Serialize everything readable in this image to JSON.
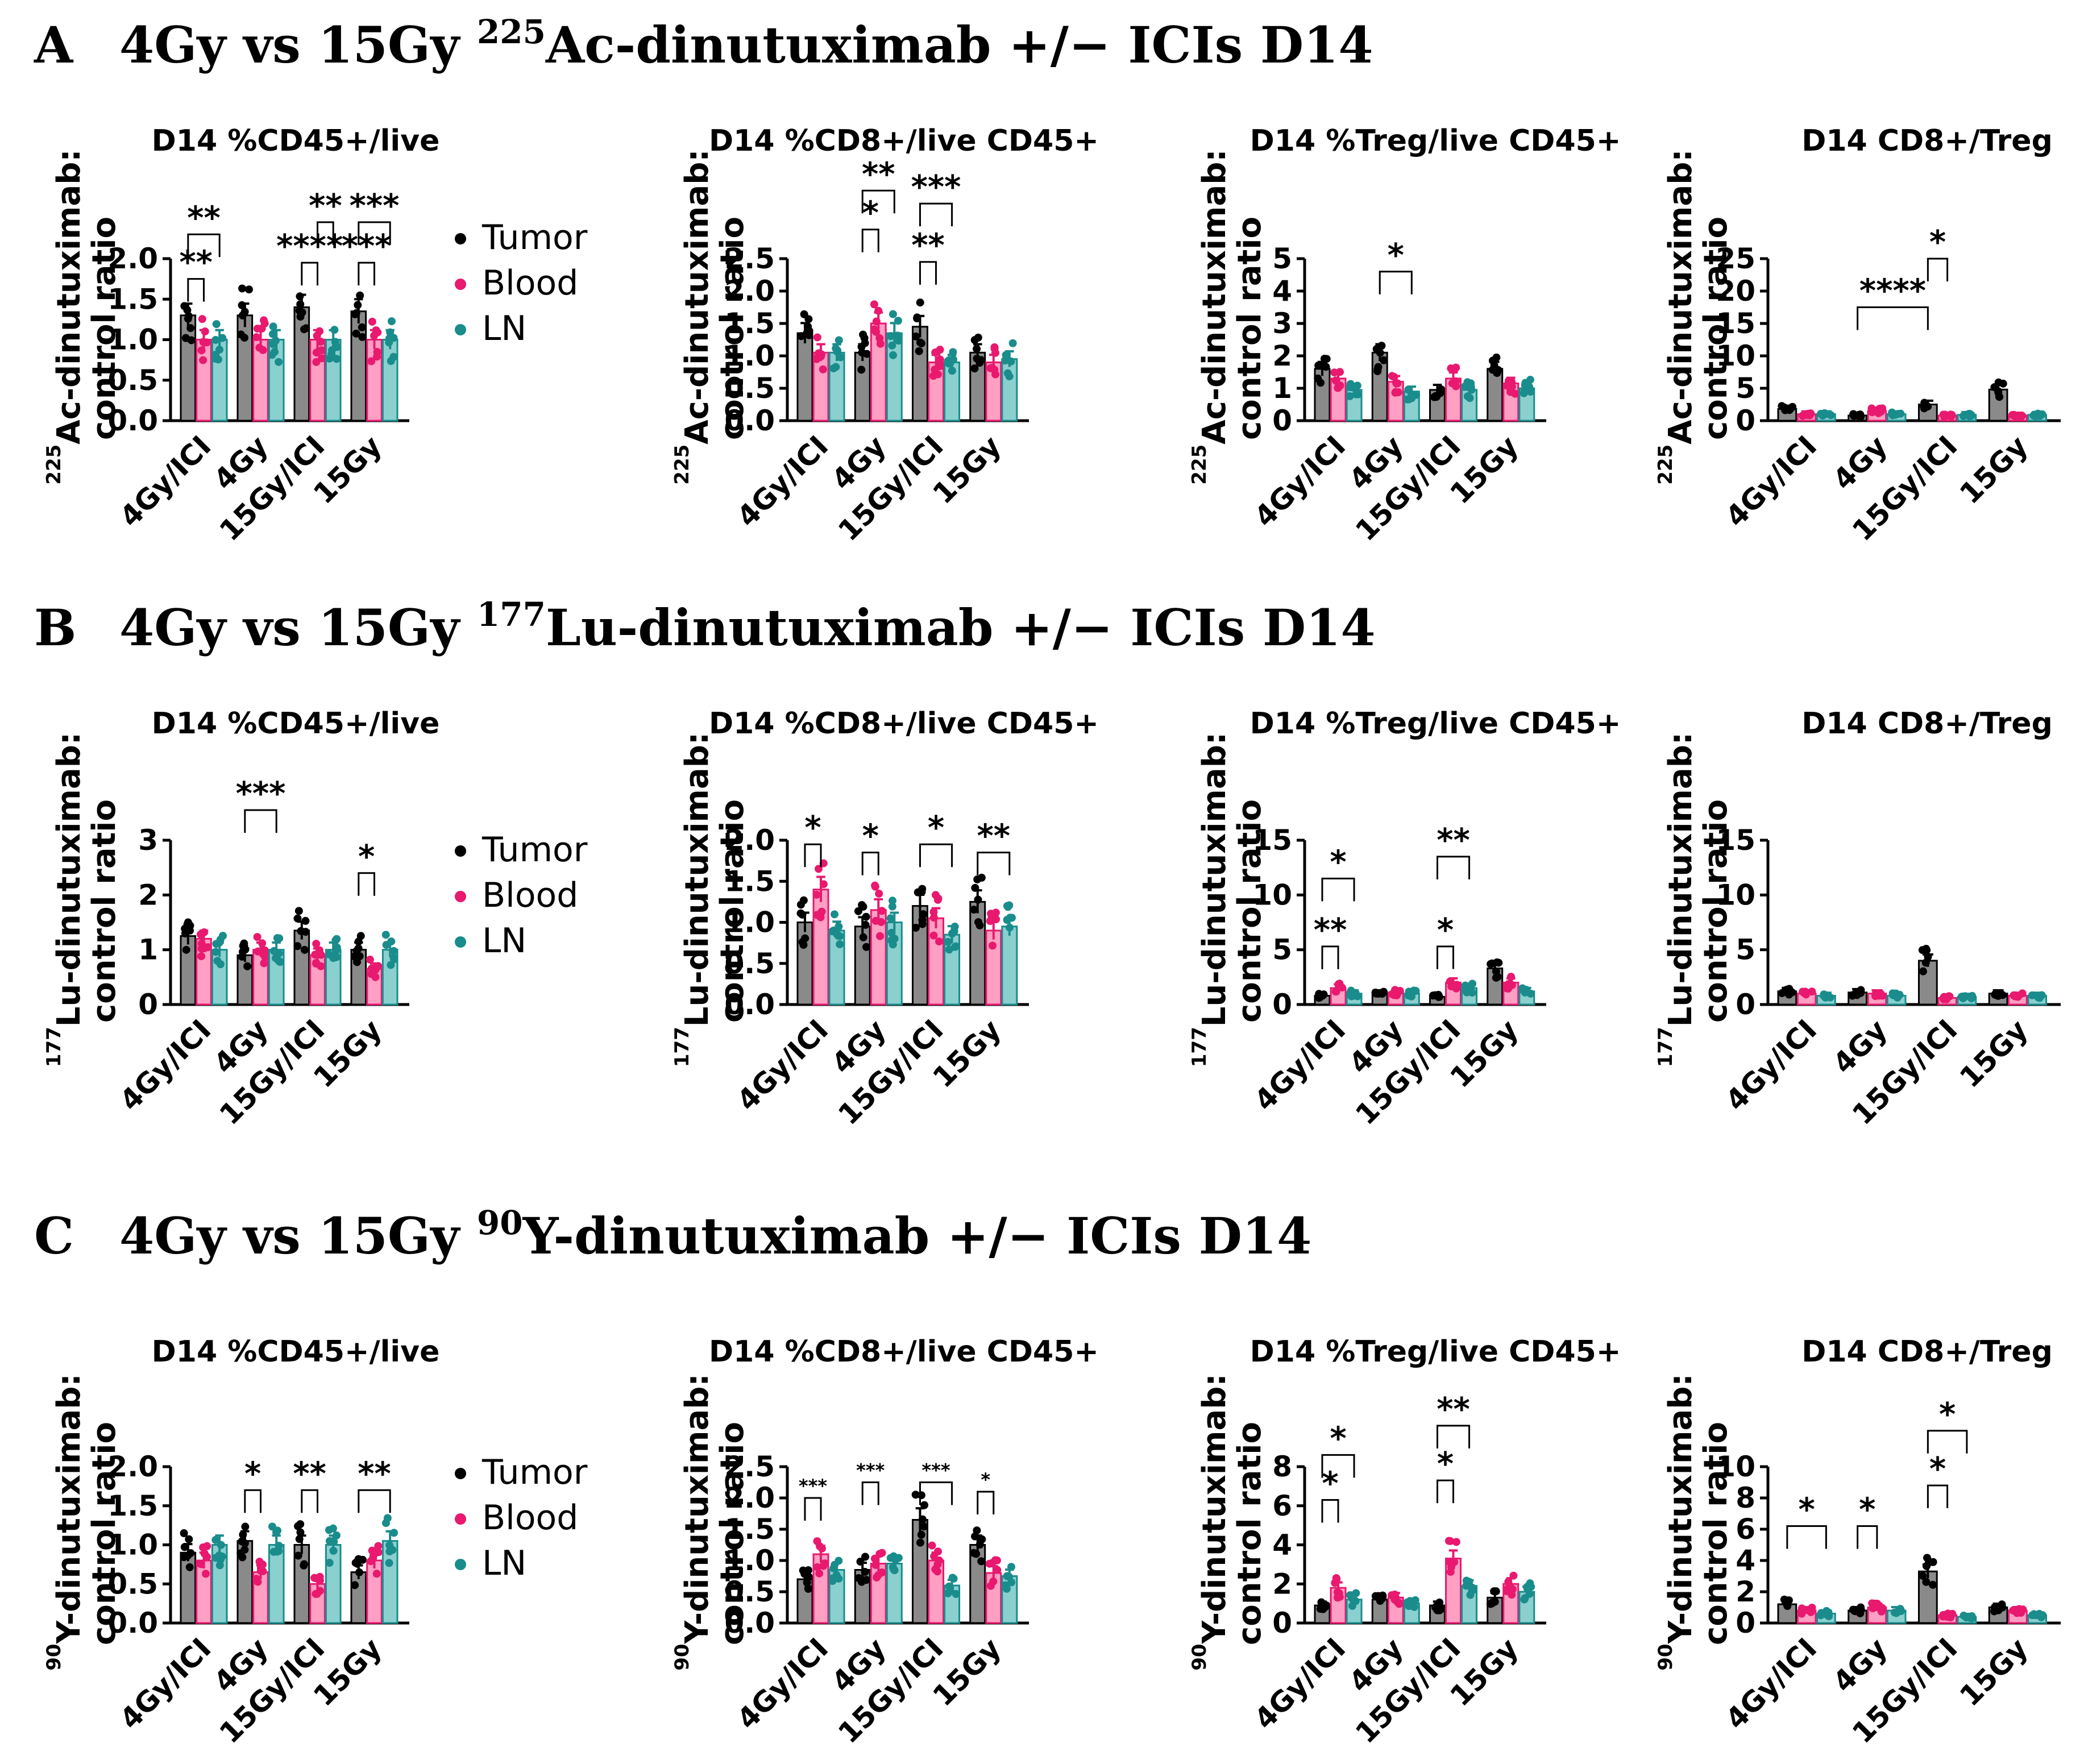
{
  "series_colors": {
    "Tumor": "#000000",
    "Blood": "#e8196e",
    "LN": "#1a8c8c"
  },
  "bar_fill_colors": {
    "Tumor": "#8a8a8a",
    "Blood": "#ff9fc3",
    "LN": "#8ad0cf"
  },
  "legend": {
    "items": [
      "Tumor",
      "Blood",
      "LN"
    ]
  },
  "sections": [
    {
      "letter": "A",
      "title_pre": "4Gy vs 15Gy ",
      "isotope_sup": "225",
      "title_post": "Ac-dinutuximab +/− ICIs D14",
      "ylabel_sup": "225",
      "ylabel_name": "Ac-dinutuximab:",
      "ylabel_line2": "control ratio"
    },
    {
      "letter": "B",
      "title_pre": "4Gy vs 15Gy ",
      "isotope_sup": "177",
      "title_post": "Lu-dinutuximab +/− ICIs D14",
      "ylabel_sup": "177",
      "ylabel_name": "Lu-dinutuximab:",
      "ylabel_line2": "control ratio"
    },
    {
      "letter": "C",
      "title_pre": "4Gy vs 15Gy ",
      "isotope_sup": "90",
      "title_post": "Y-dinutuximab +/− ICIs D14",
      "ylabel_sup": "90",
      "ylabel_name": "Y-dinutuximab:",
      "ylabel_line2": "control ratio"
    }
  ],
  "chart_data": [
    {
      "id": "A1",
      "type": "bar",
      "title": "D14 %CD45+/live",
      "categories": [
        "4Gy/ICI",
        "4Gy",
        "15Gy/ICI",
        "15Gy"
      ],
      "ylim": [
        0,
        2.0
      ],
      "yticks": [
        0.0,
        0.5,
        1.0,
        1.5,
        2.0
      ],
      "ytick_labels": [
        "0.0",
        "0.5",
        "1.0",
        "1.5",
        "2.0"
      ],
      "series": [
        {
          "name": "Tumor",
          "values": [
            1.3,
            1.3,
            1.4,
            1.35
          ]
        },
        {
          "name": "Blood",
          "values": [
            1.0,
            1.0,
            1.0,
            1.0
          ]
        },
        {
          "name": "LN",
          "values": [
            1.0,
            1.0,
            1.0,
            1.0
          ]
        }
      ],
      "annotations": [
        {
          "label": "**",
          "from": [
            0,
            0
          ],
          "to": [
            0,
            1
          ],
          "level": 1.75
        },
        {
          "label": "**",
          "from": [
            0,
            0
          ],
          "to": [
            0,
            2
          ],
          "level": 2.3
        },
        {
          "label": "****",
          "from": [
            2,
            0
          ],
          "to": [
            2,
            1
          ],
          "level": 1.95
        },
        {
          "label": "**",
          "from": [
            2,
            1
          ],
          "to": [
            2,
            2
          ],
          "level": 2.45
        },
        {
          "label": "***",
          "from": [
            3,
            0
          ],
          "to": [
            3,
            1
          ],
          "level": 1.95
        },
        {
          "label": "***",
          "from": [
            3,
            0
          ],
          "to": [
            3,
            2
          ],
          "level": 2.45
        }
      ]
    },
    {
      "id": "A2",
      "type": "bar",
      "title": "D14 %CD8+/live CD45+",
      "categories": [
        "4Gy/ICI",
        "4Gy",
        "15Gy/ICI",
        "15Gy"
      ],
      "ylim": [
        0,
        2.5
      ],
      "yticks": [
        0.0,
        0.5,
        1.0,
        1.5,
        2.0,
        2.5
      ],
      "ytick_labels": [
        "0.0",
        "0.5",
        "1.0",
        "1.5",
        "2.0",
        "2.5"
      ],
      "series": [
        {
          "name": "Tumor",
          "values": [
            1.35,
            1.05,
            1.45,
            1.05
          ]
        },
        {
          "name": "Blood",
          "values": [
            1.05,
            1.5,
            0.9,
            0.9
          ]
        },
        {
          "name": "LN",
          "values": [
            1.05,
            1.35,
            0.9,
            0.95
          ]
        }
      ],
      "annotations": [
        {
          "label": "*",
          "from": [
            1,
            0
          ],
          "to": [
            1,
            1
          ],
          "level": 2.95
        },
        {
          "label": "**",
          "from": [
            1,
            0
          ],
          "to": [
            1,
            2
          ],
          "level": 3.55
        },
        {
          "label": "**",
          "from": [
            2,
            0
          ],
          "to": [
            2,
            1
          ],
          "level": 2.45
        },
        {
          "label": "***",
          "from": [
            2,
            0
          ],
          "to": [
            2,
            2
          ],
          "level": 3.35
        }
      ]
    },
    {
      "id": "A3",
      "type": "bar",
      "title": "D14 %Treg/live CD45+",
      "categories": [
        "4Gy/ICI",
        "4Gy",
        "15Gy/ICI",
        "15Gy"
      ],
      "ylim": [
        0,
        5
      ],
      "yticks": [
        0,
        1,
        2,
        3,
        4,
        5
      ],
      "ytick_labels": [
        "0",
        "1",
        "2",
        "3",
        "4",
        "5"
      ],
      "series": [
        {
          "name": "Tumor",
          "values": [
            1.6,
            2.1,
            0.95,
            1.6
          ]
        },
        {
          "name": "Blood",
          "values": [
            1.3,
            1.2,
            1.3,
            1.15
          ]
        },
        {
          "name": "LN",
          "values": [
            0.95,
            0.9,
            0.95,
            1.0
          ]
        }
      ],
      "annotations": [
        {
          "label": "*",
          "from": [
            1,
            0
          ],
          "to": [
            1,
            2
          ],
          "level": 4.6
        }
      ]
    },
    {
      "id": "A4",
      "type": "bar",
      "title": "D14 CD8+/Treg",
      "categories": [
        "4Gy/ICI",
        "4Gy",
        "15Gy/ICI",
        "15Gy"
      ],
      "ylim": [
        0,
        25
      ],
      "yticks": [
        0,
        5,
        10,
        15,
        20,
        25
      ],
      "ytick_labels": [
        "0",
        "5",
        "10",
        "15",
        "20",
        "25"
      ],
      "series": [
        {
          "name": "Tumor",
          "values": [
            1.8,
            0.8,
            2.5,
            4.8
          ]
        },
        {
          "name": "Blood",
          "values": [
            1.0,
            1.5,
            0.8,
            0.8
          ]
        },
        {
          "name": "LN",
          "values": [
            1.0,
            1.0,
            0.9,
            0.9
          ]
        }
      ],
      "annotations": [
        {
          "label": "****",
          "from": [
            1,
            0
          ],
          "to": [
            2,
            0
          ],
          "level": 17.5
        },
        {
          "label": "*",
          "from": [
            2,
            0
          ],
          "to": [
            2,
            1
          ],
          "level": 25.0
        }
      ]
    },
    {
      "id": "B1",
      "type": "bar",
      "title": "D14 %CD45+/live",
      "categories": [
        "4Gy/ICI",
        "4Gy",
        "15Gy/ICI",
        "15Gy"
      ],
      "ylim": [
        0,
        3
      ],
      "yticks": [
        0,
        1,
        2,
        3
      ],
      "ytick_labels": [
        "0",
        "1",
        "2",
        "3"
      ],
      "series": [
        {
          "name": "Tumor",
          "values": [
            1.25,
            0.9,
            1.35,
            1.0
          ]
        },
        {
          "name": "Blood",
          "values": [
            1.2,
            1.0,
            0.9,
            0.65
          ]
        },
        {
          "name": "LN",
          "values": [
            1.0,
            1.0,
            1.0,
            1.0
          ]
        }
      ],
      "annotations": [
        {
          "label": "***",
          "from": [
            1,
            0
          ],
          "to": [
            1,
            2
          ],
          "level": 3.55
        },
        {
          "label": "*",
          "from": [
            3,
            0
          ],
          "to": [
            3,
            1
          ],
          "level": 2.4
        }
      ]
    },
    {
      "id": "B2",
      "type": "bar",
      "title": "D14 %CD8+/live CD45+",
      "categories": [
        "4Gy/ICI",
        "4Gy",
        "15Gy/ICI",
        "15Gy"
      ],
      "ylim": [
        0,
        2.0
      ],
      "yticks": [
        0.0,
        0.5,
        1.0,
        1.5,
        2.0
      ],
      "ytick_labels": [
        "0.0",
        "0.5",
        "1.0",
        "1.5",
        "2.0"
      ],
      "series": [
        {
          "name": "Tumor",
          "values": [
            1.0,
            0.95,
            1.2,
            1.25
          ]
        },
        {
          "name": "Blood",
          "values": [
            1.4,
            1.15,
            1.05,
            0.9
          ]
        },
        {
          "name": "LN",
          "values": [
            0.9,
            1.0,
            0.85,
            0.95
          ]
        }
      ],
      "annotations": [
        {
          "label": "*",
          "from": [
            0,
            0
          ],
          "to": [
            0,
            1
          ],
          "level": 1.95
        },
        {
          "label": "*",
          "from": [
            1,
            0
          ],
          "to": [
            1,
            1
          ],
          "level": 1.85
        },
        {
          "label": "*",
          "from": [
            2,
            0
          ],
          "to": [
            2,
            2
          ],
          "level": 1.95
        },
        {
          "label": "**",
          "from": [
            3,
            0
          ],
          "to": [
            3,
            2
          ],
          "level": 1.85
        }
      ]
    },
    {
      "id": "B3",
      "type": "bar",
      "title": "D14 %Treg/live CD45+",
      "categories": [
        "4Gy/ICI",
        "4Gy",
        "15Gy/ICI",
        "15Gy"
      ],
      "ylim": [
        0,
        15
      ],
      "yticks": [
        0,
        5,
        10,
        15
      ],
      "ytick_labels": [
        "0",
        "5",
        "10",
        "15"
      ],
      "series": [
        {
          "name": "Tumor",
          "values": [
            0.8,
            1.0,
            0.7,
            3.3
          ]
        },
        {
          "name": "Blood",
          "values": [
            1.5,
            1.1,
            2.0,
            2.0
          ]
        },
        {
          "name": "LN",
          "values": [
            1.0,
            1.0,
            1.5,
            1.2
          ]
        }
      ],
      "annotations": [
        {
          "label": "**",
          "from": [
            0,
            0
          ],
          "to": [
            0,
            1
          ],
          "level": 5.3
        },
        {
          "label": "*",
          "from": [
            0,
            0
          ],
          "to": [
            0,
            2
          ],
          "level": 11.5
        },
        {
          "label": "*",
          "from": [
            2,
            0
          ],
          "to": [
            2,
            1
          ],
          "level": 5.3
        },
        {
          "label": "**",
          "from": [
            2,
            0
          ],
          "to": [
            2,
            2
          ],
          "level": 13.5
        }
      ]
    },
    {
      "id": "B4",
      "type": "bar",
      "title": "D14 CD8+/Treg",
      "categories": [
        "4Gy/ICI",
        "4Gy",
        "15Gy/ICI",
        "15Gy"
      ],
      "ylim": [
        0,
        15
      ],
      "yticks": [
        0,
        5,
        10,
        15
      ],
      "ytick_labels": [
        "0",
        "5",
        "10",
        "15"
      ],
      "series": [
        {
          "name": "Tumor",
          "values": [
            1.2,
            1.1,
            4.0,
            1.0
          ]
        },
        {
          "name": "Blood",
          "values": [
            1.0,
            1.0,
            0.6,
            0.8
          ]
        },
        {
          "name": "LN",
          "values": [
            0.8,
            0.8,
            0.7,
            0.8
          ]
        }
      ],
      "annotations": []
    },
    {
      "id": "C1",
      "type": "bar",
      "title": "D14 %CD45+/live",
      "categories": [
        "4Gy/ICI",
        "4Gy",
        "15Gy/ICI",
        "15Gy"
      ],
      "ylim": [
        0,
        2.0
      ],
      "yticks": [
        0.0,
        0.5,
        1.0,
        1.5,
        2.0
      ],
      "ytick_labels": [
        "0.0",
        "0.5",
        "1.0",
        "1.5",
        "2.0"
      ],
      "series": [
        {
          "name": "Tumor",
          "values": [
            0.9,
            1.05,
            1.0,
            0.65
          ]
        },
        {
          "name": "Blood",
          "values": [
            0.8,
            0.65,
            0.5,
            0.8
          ]
        },
        {
          "name": "LN",
          "values": [
            1.0,
            1.0,
            1.0,
            1.05
          ]
        }
      ],
      "annotations": [
        {
          "label": "*",
          "from": [
            1,
            0
          ],
          "to": [
            1,
            1
          ],
          "level": 1.7
        },
        {
          "label": "**",
          "from": [
            2,
            0
          ],
          "to": [
            2,
            1
          ],
          "level": 1.7
        },
        {
          "label": "**",
          "from": [
            3,
            0
          ],
          "to": [
            3,
            2
          ],
          "level": 1.7
        }
      ]
    },
    {
      "id": "C2",
      "type": "bar",
      "title": "D14 %CD8+/live CD45+",
      "categories": [
        "4Gy/ICI",
        "4Gy",
        "15Gy/ICI",
        "15Gy"
      ],
      "ylim": [
        0,
        2.5
      ],
      "yticks": [
        0.0,
        0.5,
        1.0,
        1.5,
        2.0,
        2.5
      ],
      "ytick_labels": [
        "0.0",
        "0.5",
        "1.0",
        "1.5",
        "2.0",
        "2.5"
      ],
      "series": [
        {
          "name": "Tumor",
          "values": [
            0.7,
            0.85,
            1.65,
            1.25
          ]
        },
        {
          "name": "Blood",
          "values": [
            1.1,
            0.95,
            1.0,
            0.8
          ]
        },
        {
          "name": "LN",
          "values": [
            0.85,
            0.95,
            0.6,
            0.75
          ]
        }
      ],
      "annotations": [
        {
          "label": "***",
          "from": [
            0,
            0
          ],
          "to": [
            0,
            1
          ],
          "level": 2.0
        },
        {
          "label": "***",
          "from": [
            1,
            0
          ],
          "to": [
            1,
            1
          ],
          "level": 2.25
        },
        {
          "label": "***",
          "from": [
            2,
            0
          ],
          "to": [
            2,
            2
          ],
          "level": 2.25
        },
        {
          "label": "*",
          "from": [
            3,
            0
          ],
          "to": [
            3,
            1
          ],
          "level": 2.1
        }
      ]
    },
    {
      "id": "C3",
      "type": "bar",
      "title": "D14 %Treg/live CD45+",
      "categories": [
        "4Gy/ICI",
        "4Gy",
        "15Gy/ICI",
        "15Gy"
      ],
      "ylim": [
        0,
        8
      ],
      "yticks": [
        0,
        2,
        4,
        6,
        8
      ],
      "ytick_labels": [
        "0",
        "2",
        "4",
        "6",
        "8"
      ],
      "series": [
        {
          "name": "Tumor",
          "values": [
            0.9,
            1.2,
            0.9,
            1.3
          ]
        },
        {
          "name": "Blood",
          "values": [
            1.8,
            1.3,
            3.3,
            2.0
          ]
        },
        {
          "name": "LN",
          "values": [
            1.2,
            1.0,
            1.9,
            1.6
          ]
        }
      ],
      "annotations": [
        {
          "label": "*",
          "from": [
            0,
            0
          ],
          "to": [
            0,
            1
          ],
          "level": 6.3
        },
        {
          "label": "*",
          "from": [
            0,
            0
          ],
          "to": [
            0,
            2
          ],
          "level": 8.6
        },
        {
          "label": "*",
          "from": [
            2,
            0
          ],
          "to": [
            2,
            1
          ],
          "level": 7.3
        },
        {
          "label": "**",
          "from": [
            2,
            0
          ],
          "to": [
            2,
            2
          ],
          "level": 10.1
        }
      ]
    },
    {
      "id": "C4",
      "type": "bar",
      "title": "D14 CD8+/Treg",
      "categories": [
        "4Gy/ICI",
        "4Gy",
        "15Gy/ICI",
        "15Gy"
      ],
      "ylim": [
        0,
        10
      ],
      "yticks": [
        0,
        2,
        4,
        6,
        8,
        10
      ],
      "ytick_labels": [
        "0",
        "2",
        "4",
        "6",
        "8",
        "10"
      ],
      "series": [
        {
          "name": "Tumor",
          "values": [
            1.2,
            0.8,
            3.3,
            1.0
          ]
        },
        {
          "name": "Blood",
          "values": [
            0.8,
            1.0,
            0.5,
            0.8
          ]
        },
        {
          "name": "LN",
          "values": [
            0.6,
            0.8,
            0.4,
            0.5
          ]
        }
      ],
      "annotations": [
        {
          "label": "*",
          "from": [
            0,
            0
          ],
          "to": [
            0,
            2
          ],
          "level": 6.2
        },
        {
          "label": "*",
          "from": [
            1,
            0
          ],
          "to": [
            1,
            1
          ],
          "level": 6.2
        },
        {
          "label": "*",
          "from": [
            2,
            0
          ],
          "to": [
            2,
            1
          ],
          "level": 8.8
        },
        {
          "label": "*",
          "from": [
            2,
            0
          ],
          "to": [
            2,
            2
          ],
          "level": 12.3
        }
      ]
    }
  ]
}
